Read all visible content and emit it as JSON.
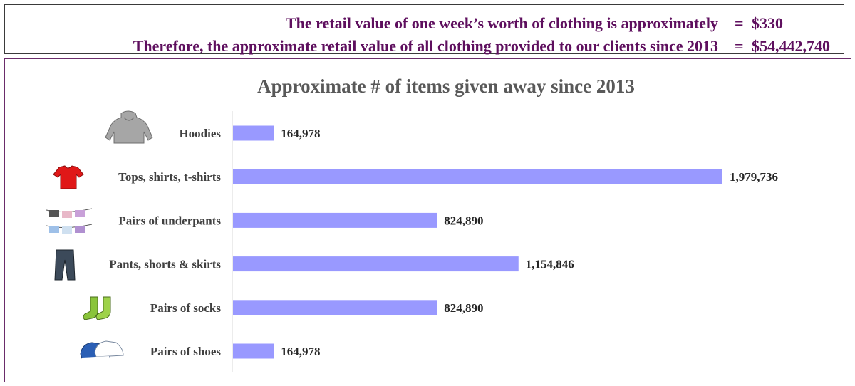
{
  "header": {
    "line1": {
      "label": "The retail value of one week’s worth of clothing is approximately",
      "eq": "=",
      "value": "$330"
    },
    "line2": {
      "label": "Therefore, the approximate retail value of all clothing provided to our clients since 2013",
      "eq": "=",
      "value": "$54,442,740"
    }
  },
  "chart_data": {
    "type": "bar",
    "orientation": "horizontal",
    "title": "Approximate # of items given away since 2013",
    "categories": [
      "Hoodies",
      "Tops, shirts, t-shirts",
      "Pairs of underpants",
      "Pants, shorts & skirts",
      "Pairs of socks",
      "Pairs of shoes"
    ],
    "values": [
      164978,
      1979736,
      824890,
      1154846,
      824890,
      164978
    ],
    "value_labels": [
      "164,978",
      "1,979,736",
      "824,890",
      "1,154,846",
      "824,890",
      "164,978"
    ],
    "icons": [
      "hoodie-icon",
      "tshirt-icon",
      "underpants-icon",
      "pants-icon",
      "socks-icon",
      "shoes-icon"
    ],
    "bar_color": "#9999ff",
    "grid": false,
    "legend": "none"
  },
  "colors": {
    "header_text": "#5e0f5e",
    "frame_border": "#6a2c6a"
  }
}
